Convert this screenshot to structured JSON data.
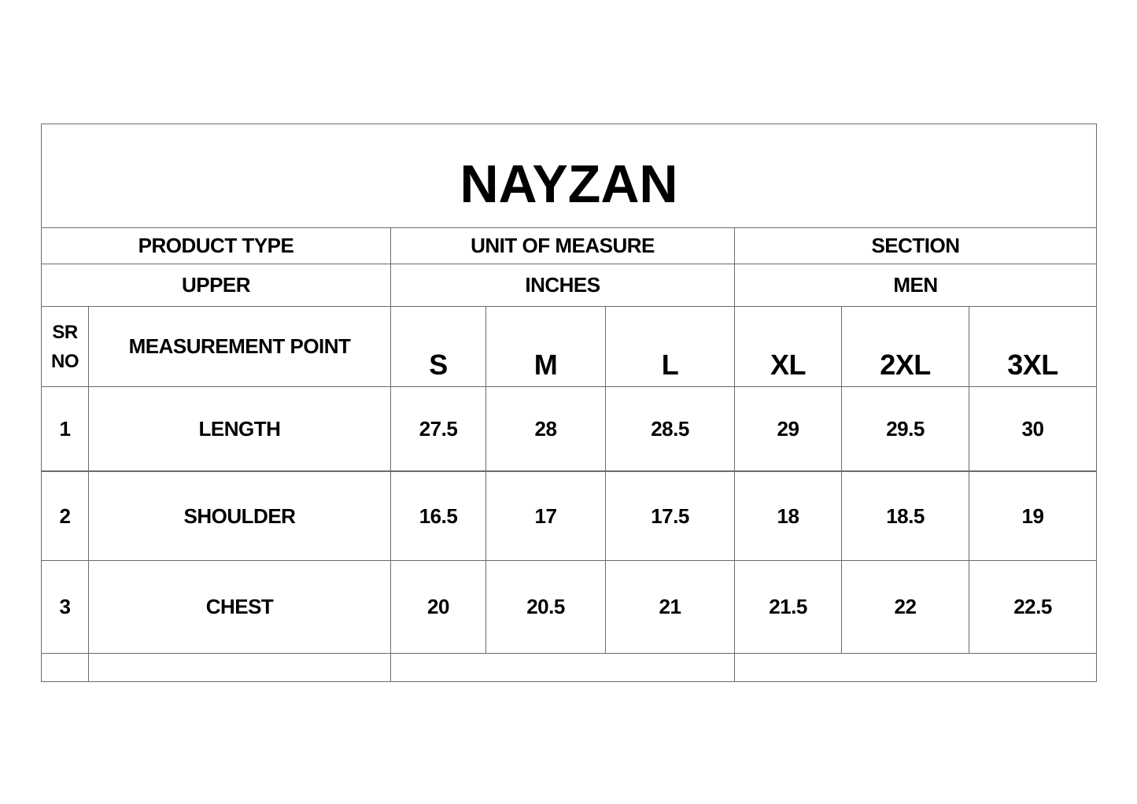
{
  "title": "NAYZAN",
  "info_headers": {
    "product_type": "PRODUCT TYPE",
    "unit_of_measure": "UNIT OF MEASURE",
    "section": "SECTION"
  },
  "info_values": {
    "product_type": "UPPER",
    "unit_of_measure": "INCHES",
    "section": "MEN"
  },
  "columns": {
    "sr_no_line1": "SR",
    "sr_no_line2": "NO",
    "measurement_point": "MEASUREMENT POINT",
    "sizes": [
      "S",
      "M",
      "L",
      "XL",
      "2XL",
      "3XL"
    ]
  },
  "rows": [
    {
      "sr": "1",
      "point": "LENGTH",
      "values": [
        "27.5",
        "28",
        "28.5",
        "29",
        "29.5",
        "30"
      ]
    },
    {
      "sr": "2",
      "point": "SHOULDER",
      "values": [
        "16.5",
        "17",
        "17.5",
        "18",
        "18.5",
        "19"
      ]
    },
    {
      "sr": "3",
      "point": "CHEST",
      "values": [
        "20",
        "20.5",
        "21",
        "21.5",
        "22",
        "22.5"
      ]
    }
  ]
}
